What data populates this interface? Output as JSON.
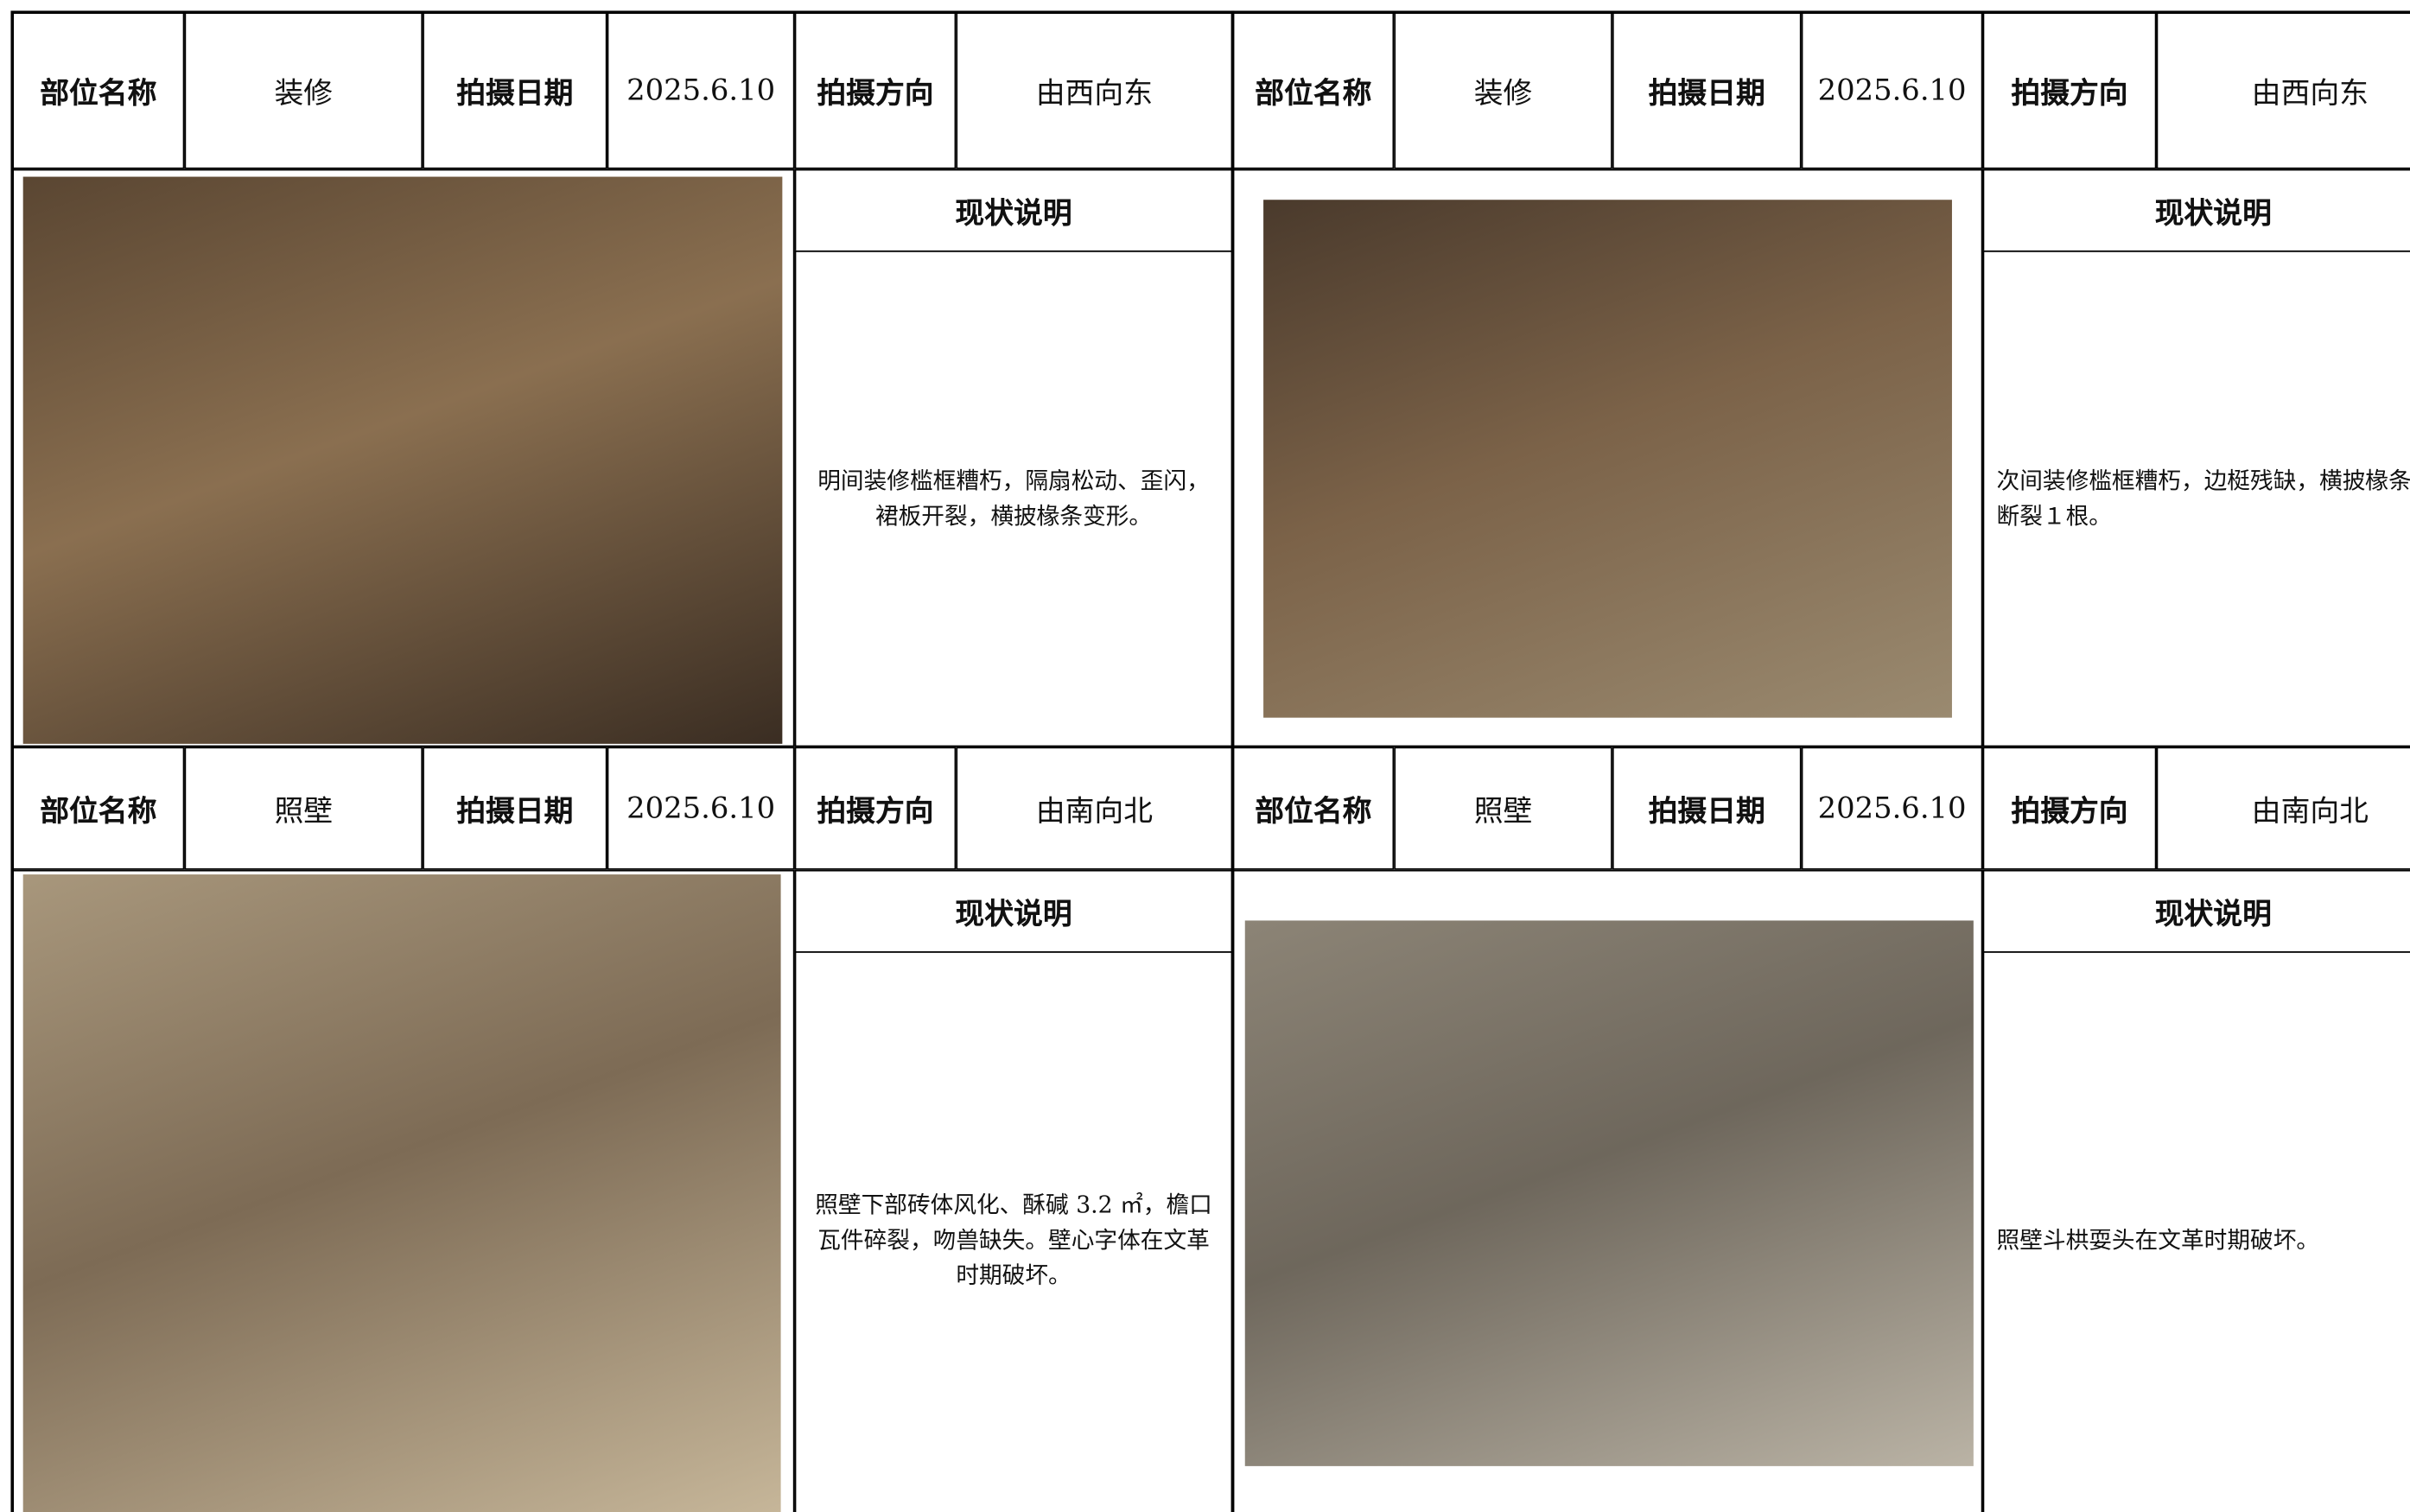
{
  "panels": [
    {
      "header": {
        "part_label": "部位名称",
        "part": "装修",
        "date_label": "拍摄日期",
        "date": "2025.6.10",
        "direction_label": "拍摄方向",
        "direction": "由西向东"
      },
      "status_label": "现状说明",
      "status": "明间装修槛框糟朽，隔扇松动、歪闪，裙板开裂，横披椽条变形。"
    },
    {
      "header": {
        "part_label": "部位名称",
        "part": "装修",
        "date_label": "拍摄日期",
        "date": "2025.6.10",
        "direction_label": "拍摄方向",
        "direction": "由西向东"
      },
      "status_label": "现状说明",
      "status": "次间装修槛框糟朽，边梃残缺，横披椽条断裂１根。"
    },
    {
      "header": {
        "part_label": "部位名称",
        "part": "照壁",
        "date_label": "拍摄日期",
        "date": "2025.6.10",
        "direction_label": "拍摄方向",
        "direction": "由南向北"
      },
      "status_label": "现状说明",
      "status": "照壁下部砖体风化、酥碱 3.2 ㎡，檐口瓦件碎裂，吻兽缺失。壁心字体在文革时期破坏。"
    },
    {
      "header": {
        "part_label": "部位名称",
        "part": "照壁",
        "date_label": "拍摄日期",
        "date": "2025.6.10",
        "direction_label": "拍摄方向",
        "direction": "由南向北"
      },
      "status_label": "现状说明",
      "status": "照壁斗栱耍头在文革时期破坏。"
    }
  ]
}
